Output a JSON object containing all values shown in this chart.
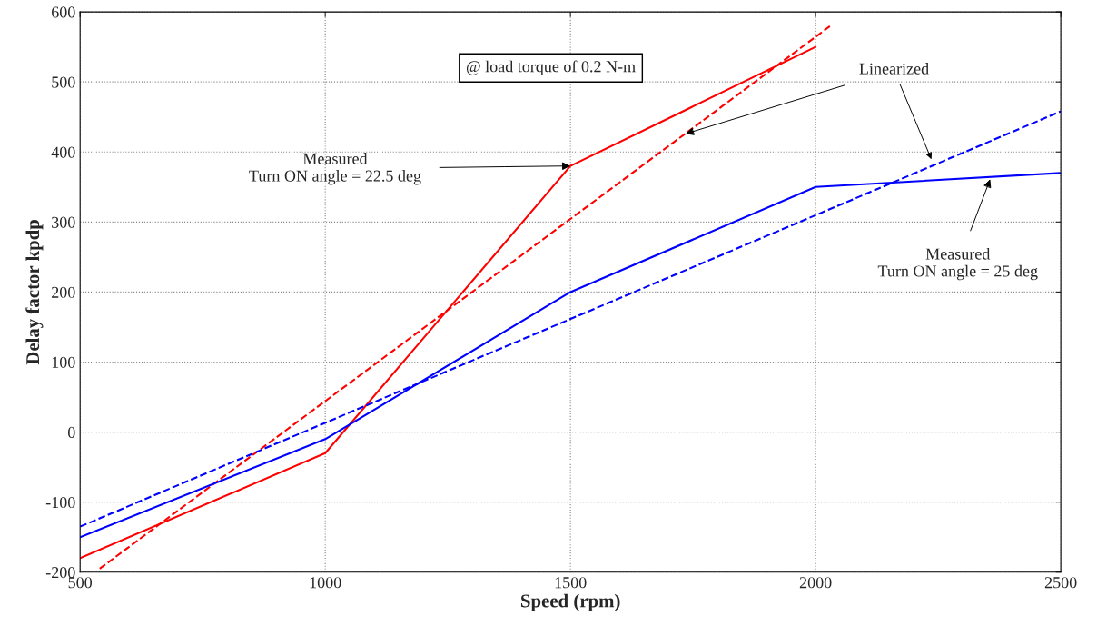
{
  "chart_data": {
    "type": "line",
    "xlabel": "Speed (rpm)",
    "ylabel": "Delay factor kpdp",
    "xlim": [
      500,
      2500
    ],
    "xticks": [
      500,
      1000,
      1500,
      2000,
      2500
    ],
    "ylim": [
      -200,
      600
    ],
    "yticks": [
      -200,
      -100,
      0,
      100,
      200,
      300,
      400,
      500,
      600
    ],
    "grid": true,
    "legend": false,
    "marker": "none",
    "series": [
      {
        "color": "#ff0000",
        "line_style": "solid",
        "x": [
          500,
          1000,
          1500,
          2000
        ],
        "values": [
          -180,
          -30,
          380,
          550
        ]
      },
      {
        "color": "#ff0000",
        "line_style": "dashed",
        "x": [
          540,
          2030
        ],
        "values": [
          -195,
          580
        ]
      },
      {
        "color": "#0000ff",
        "line_style": "solid",
        "x": [
          500,
          1000,
          1500,
          2000,
          2500
        ],
        "values": [
          -150,
          -10,
          200,
          350,
          370
        ]
      },
      {
        "color": "#0000ff",
        "line_style": "dashed",
        "x": [
          500,
          2500
        ],
        "values": [
          -135,
          458
        ]
      }
    ],
    "annotations": [
      "@ load torque of 0.2 N-m",
      {
        "text": "Measured\nTurn ON angle = 22.5 deg",
        "x": 1500,
        "y": 380
      },
      {
        "text": "Linearized",
        "x": 1735,
        "y": 426
      },
      {
        "text": "Measured\nTurn ON angle = 25 deg",
        "x": 2356,
        "y": 361
      }
    ]
  }
}
